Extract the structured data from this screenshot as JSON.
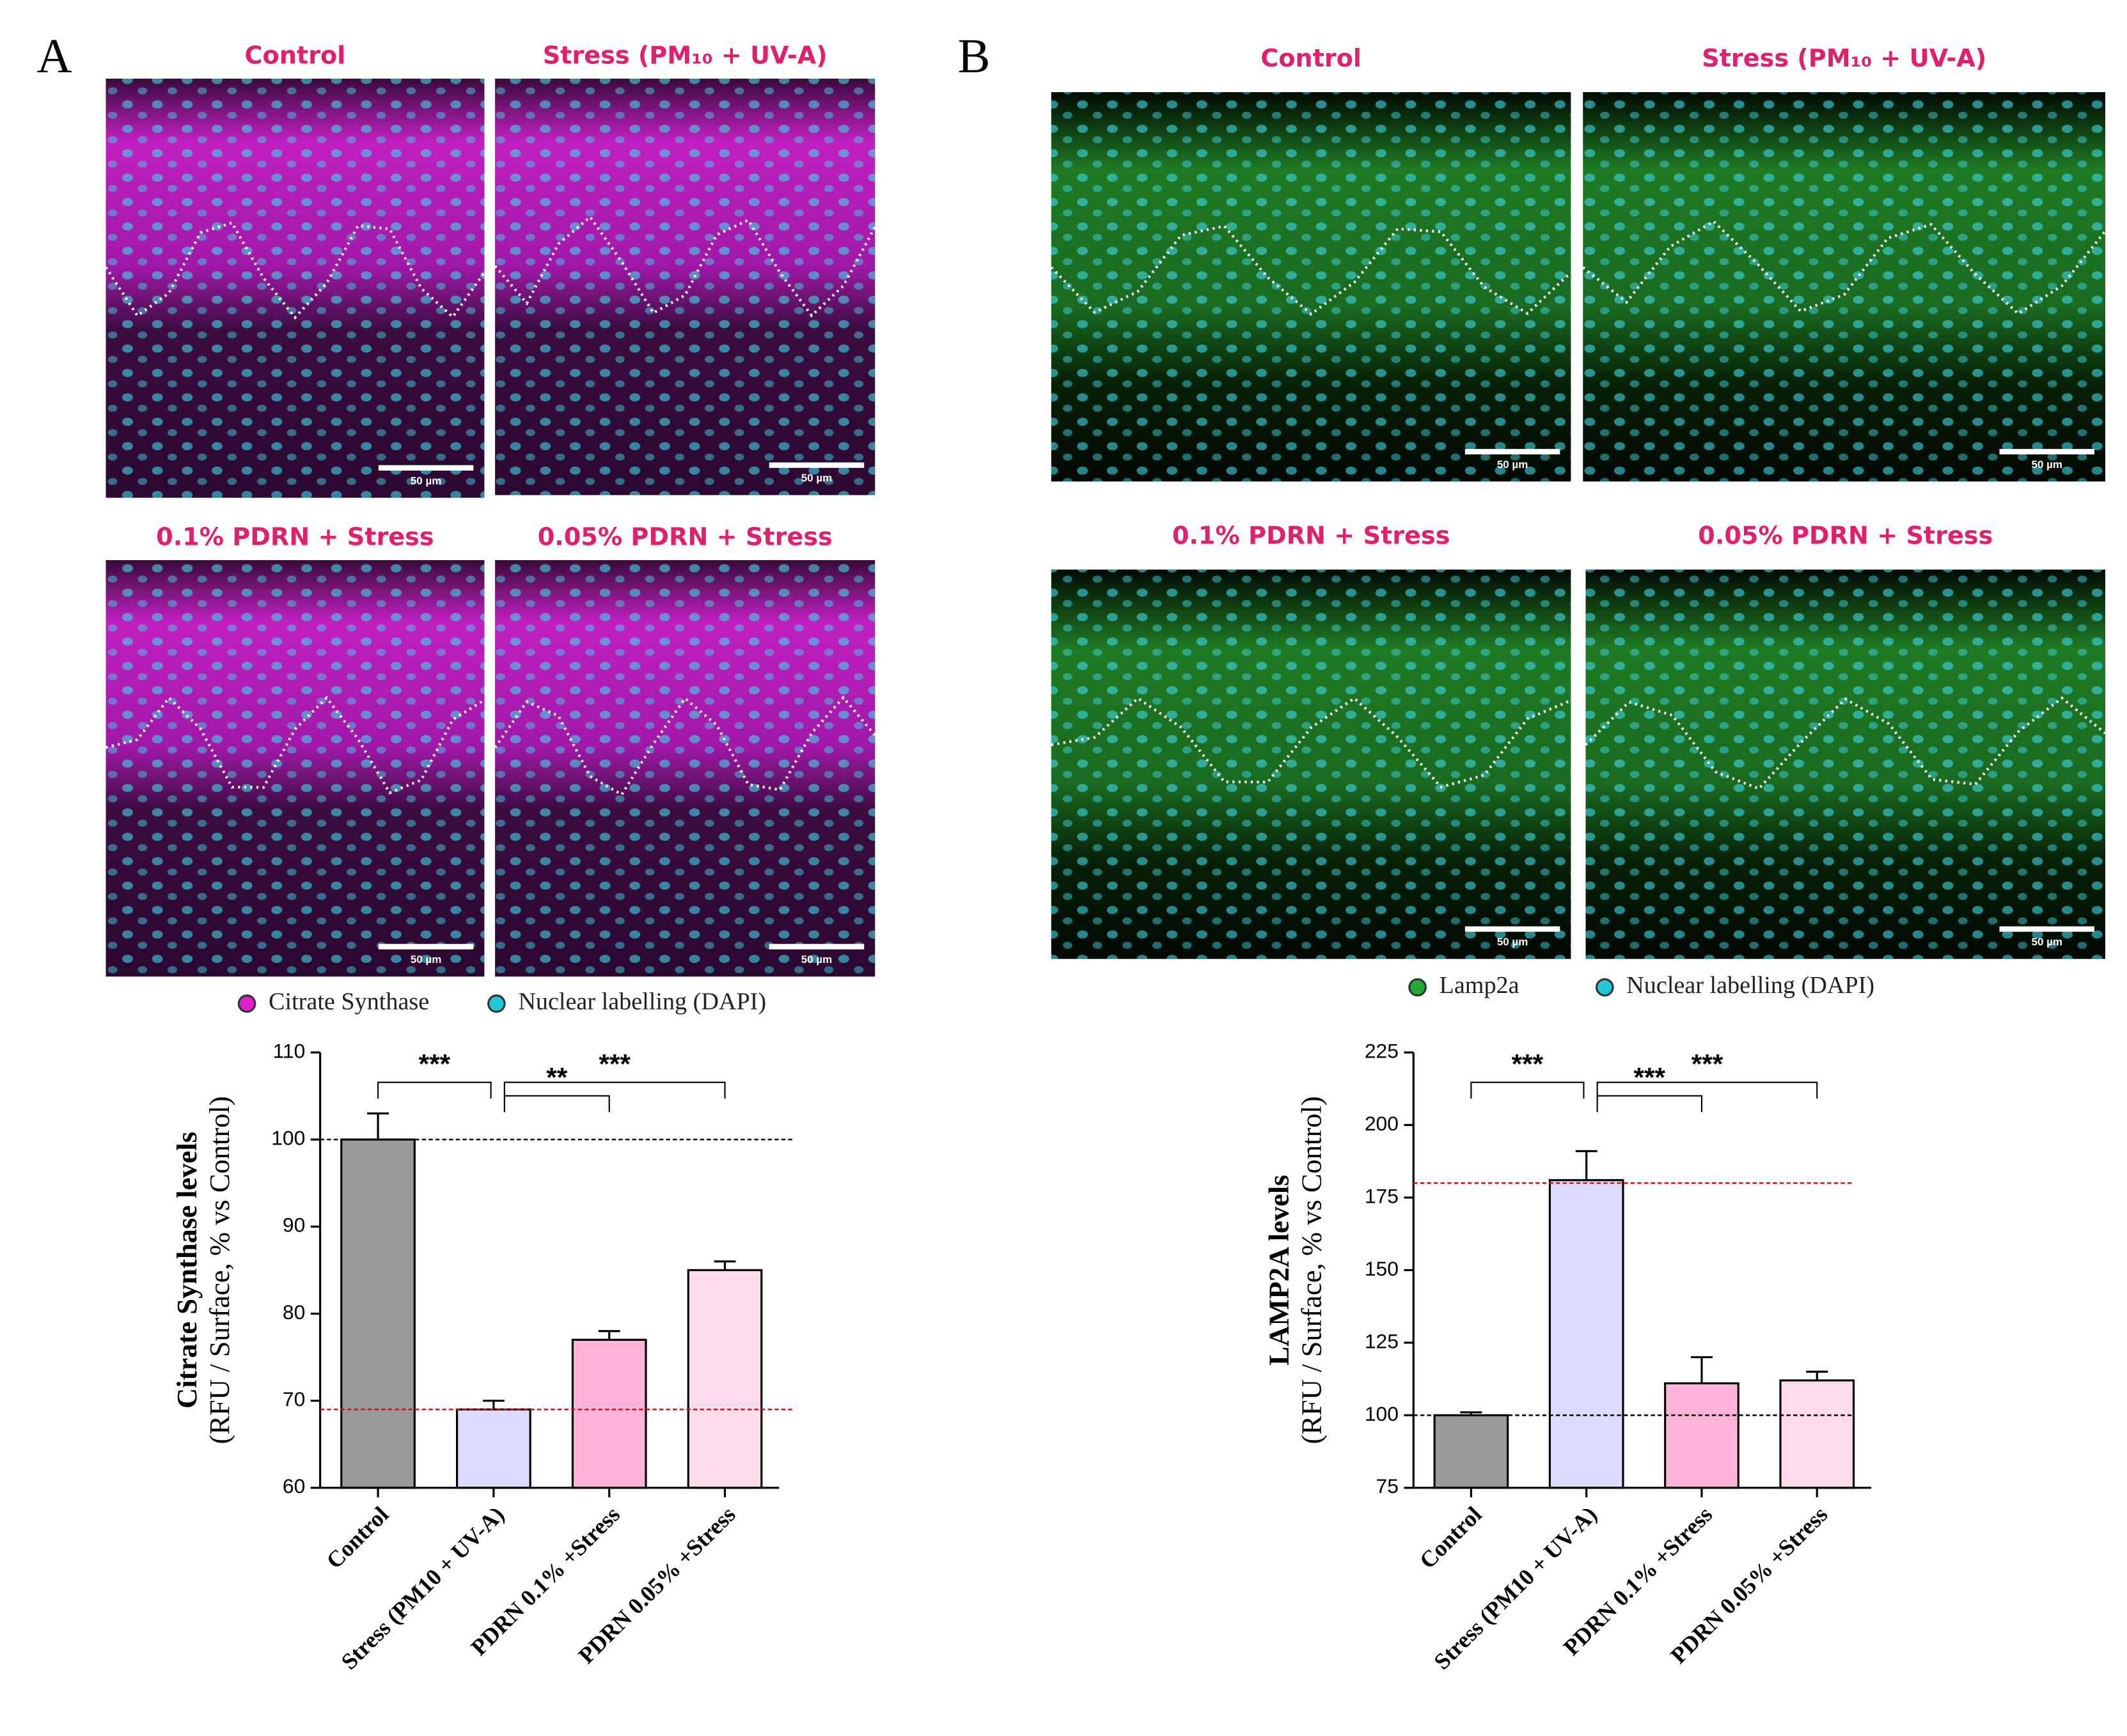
{
  "panels": [
    {
      "label": "A",
      "images": [
        {
          "title": "Control",
          "scale_bar": "50 µm"
        },
        {
          "title": "Stress (PM₁₀ + UV-A)",
          "scale_bar": "50 µm"
        },
        {
          "title": "0.1% PDRN + Stress",
          "scale_bar": "50 µm"
        },
        {
          "title": "0.05% PDRN + Stress",
          "scale_bar": "50 µm"
        }
      ],
      "legend": [
        {
          "name": "Citrate Synthase",
          "color": "#e020d0"
        },
        {
          "name": "Nuclear labelling (DAPI)",
          "color": "#20c8d8"
        }
      ]
    },
    {
      "label": "B",
      "images": [
        {
          "title": "Control",
          "scale_bar": "50 µm"
        },
        {
          "title": "Stress (PM₁₀ + UV-A)",
          "scale_bar": "50 µm"
        },
        {
          "title": "0.1% PDRN + Stress",
          "scale_bar": "50 µm"
        },
        {
          "title": "0.05% PDRN + Stress",
          "scale_bar": "50 µm"
        }
      ],
      "legend": [
        {
          "name": "Lamp2a",
          "color": "#1faa3a"
        },
        {
          "name": "Nuclear labelling (DAPI)",
          "color": "#20c8d8"
        }
      ]
    }
  ],
  "chart_data": [
    {
      "type": "bar",
      "y_label": [
        "Citrate Synthase levels",
        "(RFU / Surface, % vs Control)"
      ],
      "categories": [
        "Control",
        "Stress (PM10 + UV-A)",
        "PDRN 0.1% +Stress",
        "PDRN 0.05% +Stress"
      ],
      "values": [
        100,
        69,
        77,
        85
      ],
      "errors": [
        3,
        1,
        1,
        1
      ],
      "colors": [
        "#999999",
        "#dcdcff",
        "#ffb3d9",
        "#ffdbeb"
      ],
      "ylim": [
        60,
        110
      ],
      "yticks": [
        60,
        70,
        80,
        90,
        100,
        110
      ],
      "reference_lines": [
        {
          "value": 100,
          "color": "#000000"
        },
        {
          "value": 69,
          "color": "#ff0000"
        }
      ],
      "significance": [
        {
          "between": [
            0,
            1
          ],
          "label": "***"
        },
        {
          "between": [
            1,
            2
          ],
          "label": "**"
        },
        {
          "between": [
            1,
            3
          ],
          "label": "***"
        }
      ]
    },
    {
      "type": "bar",
      "y_label": [
        "LAMP2A levels",
        "(RFU / Surface, % vs Control)"
      ],
      "categories": [
        "Control",
        "Stress (PM10 + UV-A)",
        "PDRN 0.1% +Stress",
        "PDRN 0.05% +Stress"
      ],
      "values": [
        100,
        181,
        111,
        112
      ],
      "errors": [
        1,
        10,
        9,
        3
      ],
      "colors": [
        "#999999",
        "#dcdcff",
        "#ffb3d9",
        "#ffdbeb"
      ],
      "ylim": [
        75,
        225
      ],
      "yticks": [
        75,
        100,
        125,
        150,
        175,
        200,
        225
      ],
      "reference_lines": [
        {
          "value": 180,
          "color": "#ff0000"
        },
        {
          "value": 100,
          "color": "#000000"
        }
      ],
      "significance": [
        {
          "between": [
            0,
            1
          ],
          "label": "***"
        },
        {
          "between": [
            1,
            2
          ],
          "label": "***"
        },
        {
          "between": [
            1,
            3
          ],
          "label": "***"
        }
      ]
    }
  ]
}
